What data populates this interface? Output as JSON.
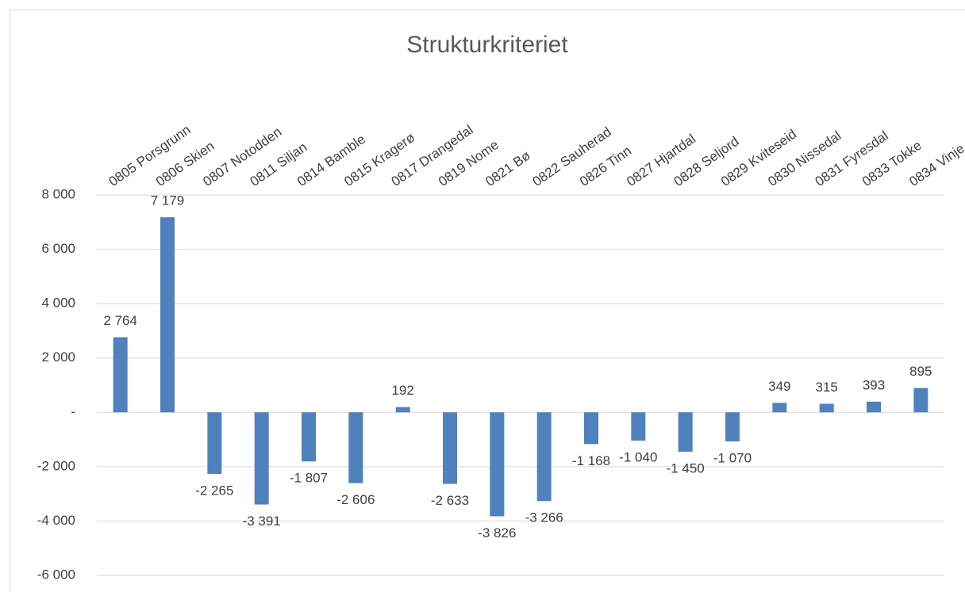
{
  "chart_data": {
    "type": "bar",
    "title": "Strukturkriteriet",
    "categories": [
      "0805 Porsgrunn",
      "0806 Skien",
      "0807 Notodden",
      "0811 Siljan",
      "0814 Bamble",
      "0815 Kragerø",
      "0817 Drangedal",
      "0819 Nome",
      "0821 Bø",
      "0822 Sauherad",
      "0826 Tinn",
      "0827 Hjartdal",
      "0828 Seljord",
      "0829 Kviteseid",
      "0830 Nissedal",
      "0831 Fyresdal",
      "0833 Tokke",
      "0834 Vinje"
    ],
    "values": [
      2764,
      7179,
      -2265,
      -3391,
      -1807,
      -2606,
      192,
      -2633,
      -3826,
      -3266,
      -1168,
      -1040,
      -1450,
      -1070,
      349,
      315,
      393,
      895
    ],
    "value_labels": [
      "2 764",
      "7 179",
      "-2 265",
      "-3 391",
      "-1 807",
      "-2 606",
      "192",
      "-2 633",
      "-3 826",
      "-3 266",
      "-1 168",
      "-1 040",
      "-1 450",
      "-1 070",
      "349",
      "315",
      "393",
      "895"
    ],
    "color": "#4f81bd",
    "ylim": [
      -6000,
      8000
    ],
    "yticks": [
      {
        "value": -6000,
        "label": "-6 000"
      },
      {
        "value": -4000,
        "label": "-4 000"
      },
      {
        "value": -2000,
        "label": "-2 000"
      },
      {
        "value": 0,
        "label": "-"
      },
      {
        "value": 2000,
        "label": "2 000"
      },
      {
        "value": 4000,
        "label": "4 000"
      },
      {
        "value": 6000,
        "label": "6 000"
      },
      {
        "value": 8000,
        "label": "8 000"
      }
    ],
    "grid": true
  }
}
